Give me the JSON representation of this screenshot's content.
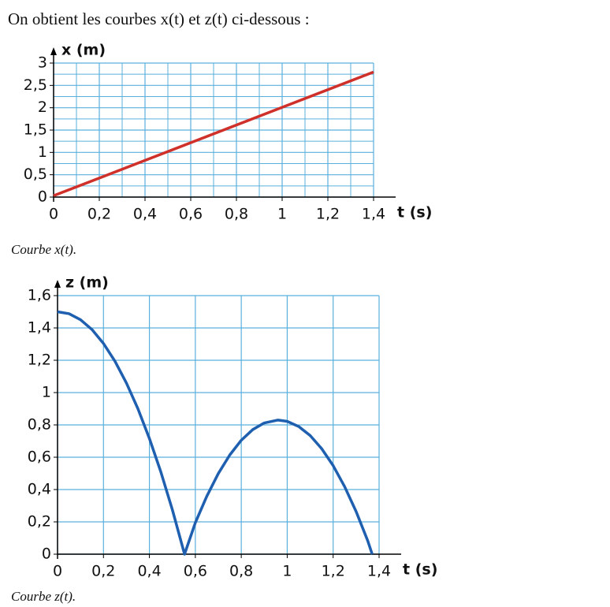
{
  "heading": "On obtient les courbes x(t) et z(t) ci-dessous :",
  "chart_data": [
    {
      "type": "line",
      "caption": "Courbe x(t).",
      "x_label": "t (s)",
      "y_label": "x (m)",
      "x": [
        0,
        1.4
      ],
      "values": [
        0.03,
        2.8
      ],
      "color": "#d0302a",
      "xlim": [
        0,
        1.4
      ],
      "ylim": [
        0,
        3
      ],
      "grid": true,
      "xticks": [
        0,
        {
          "value": 0.2,
          "label": "0,2"
        },
        {
          "value": 0.4,
          "label": "0,4"
        },
        {
          "value": 0.6,
          "label": "0,6"
        },
        {
          "value": 0.8,
          "label": "0,8"
        },
        1,
        {
          "value": 1.2,
          "label": "1,2"
        },
        {
          "value": 1.4,
          "label": "1,4"
        }
      ],
      "yticks": [
        0,
        {
          "value": 0.5,
          "label": "0,5"
        },
        1,
        {
          "value": 1.5,
          "label": "1,5"
        },
        2,
        {
          "value": 2.5,
          "label": "2,5"
        },
        3
      ]
    },
    {
      "type": "line",
      "caption": "Courbe z(t).",
      "x_label": "t (s)",
      "y_label": "z (m)",
      "x": [
        0,
        0.05,
        0.1,
        0.15,
        0.2,
        0.25,
        0.3,
        0.35,
        0.4,
        0.45,
        0.5,
        0.553,
        0.6,
        0.65,
        0.7,
        0.75,
        0.8,
        0.85,
        0.9,
        0.96,
        1.0,
        1.05,
        1.1,
        1.15,
        1.2,
        1.25,
        1.3,
        1.35,
        1.37
      ],
      "values": [
        1.5,
        1.488,
        1.451,
        1.39,
        1.304,
        1.194,
        1.059,
        0.9,
        0.716,
        0.508,
        0.275,
        0,
        0.195,
        0.359,
        0.499,
        0.614,
        0.705,
        0.771,
        0.812,
        0.83,
        0.822,
        0.79,
        0.734,
        0.653,
        0.548,
        0.418,
        0.264,
        0.085,
        0
      ],
      "color": "#1f5fb0",
      "xlim": [
        0,
        1.4
      ],
      "ylim": [
        0,
        1.6
      ],
      "grid": true,
      "xticks": [
        0,
        {
          "value": 0.2,
          "label": "0,2"
        },
        {
          "value": 0.4,
          "label": "0,4"
        },
        {
          "value": 0.6,
          "label": "0,6"
        },
        {
          "value": 0.8,
          "label": "0,8"
        },
        1,
        {
          "value": 1.2,
          "label": "1,2"
        },
        {
          "value": 1.4,
          "label": "1,4"
        }
      ],
      "yticks": [
        0,
        {
          "value": 0.2,
          "label": "0,2"
        },
        {
          "value": 0.4,
          "label": "0,4"
        },
        {
          "value": 0.6,
          "label": "0,6"
        },
        {
          "value": 0.8,
          "label": "0,8"
        },
        1,
        {
          "value": 1.2,
          "label": "1,2"
        },
        {
          "value": 1.4,
          "label": "1,4"
        },
        {
          "value": 1.6,
          "label": "1,6"
        }
      ]
    }
  ]
}
